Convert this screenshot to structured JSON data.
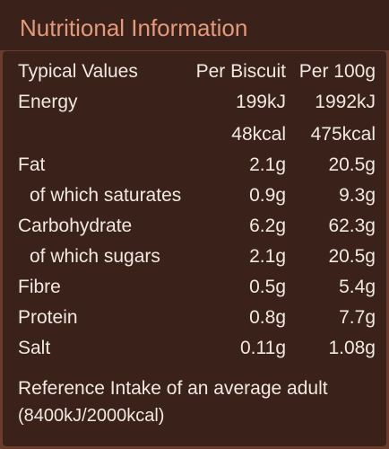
{
  "title": "Nutritional Information",
  "table": {
    "headers": {
      "label": "Typical Values",
      "per_biscuit": "Per Biscuit",
      "per_100g": "Per 100g"
    },
    "rows": [
      {
        "label": "Energy",
        "per_biscuit": "199kJ",
        "per_100g": "1992kJ"
      },
      {
        "label": "",
        "per_biscuit": "48kcal",
        "per_100g": "475kcal"
      },
      {
        "label": "Fat",
        "per_biscuit": "2.1g",
        "per_100g": "20.5g"
      },
      {
        "label": "of which saturates",
        "per_biscuit": "0.9g",
        "per_100g": "9.3g"
      },
      {
        "label": "Carbohydrate",
        "per_biscuit": "6.2g",
        "per_100g": "62.3g"
      },
      {
        "label": "of which sugars",
        "per_biscuit": "2.1g",
        "per_100g": "20.5g"
      },
      {
        "label": "Fibre",
        "per_biscuit": "0.5g",
        "per_100g": "5.4g"
      },
      {
        "label": "Protein",
        "per_biscuit": "0.8g",
        "per_100g": "7.7g"
      },
      {
        "label": "Salt",
        "per_biscuit": "0.11g",
        "per_100g": "1.08g"
      }
    ]
  },
  "reference": {
    "title": "Reference Intake of an average adult",
    "subtitle": "(8400kJ/2000kcal)"
  },
  "colors": {
    "title_text": "#e3997b",
    "panel_dark": "#3a221a",
    "border_brown": "#6b3c2e",
    "body_text": "#f1e8e1"
  }
}
